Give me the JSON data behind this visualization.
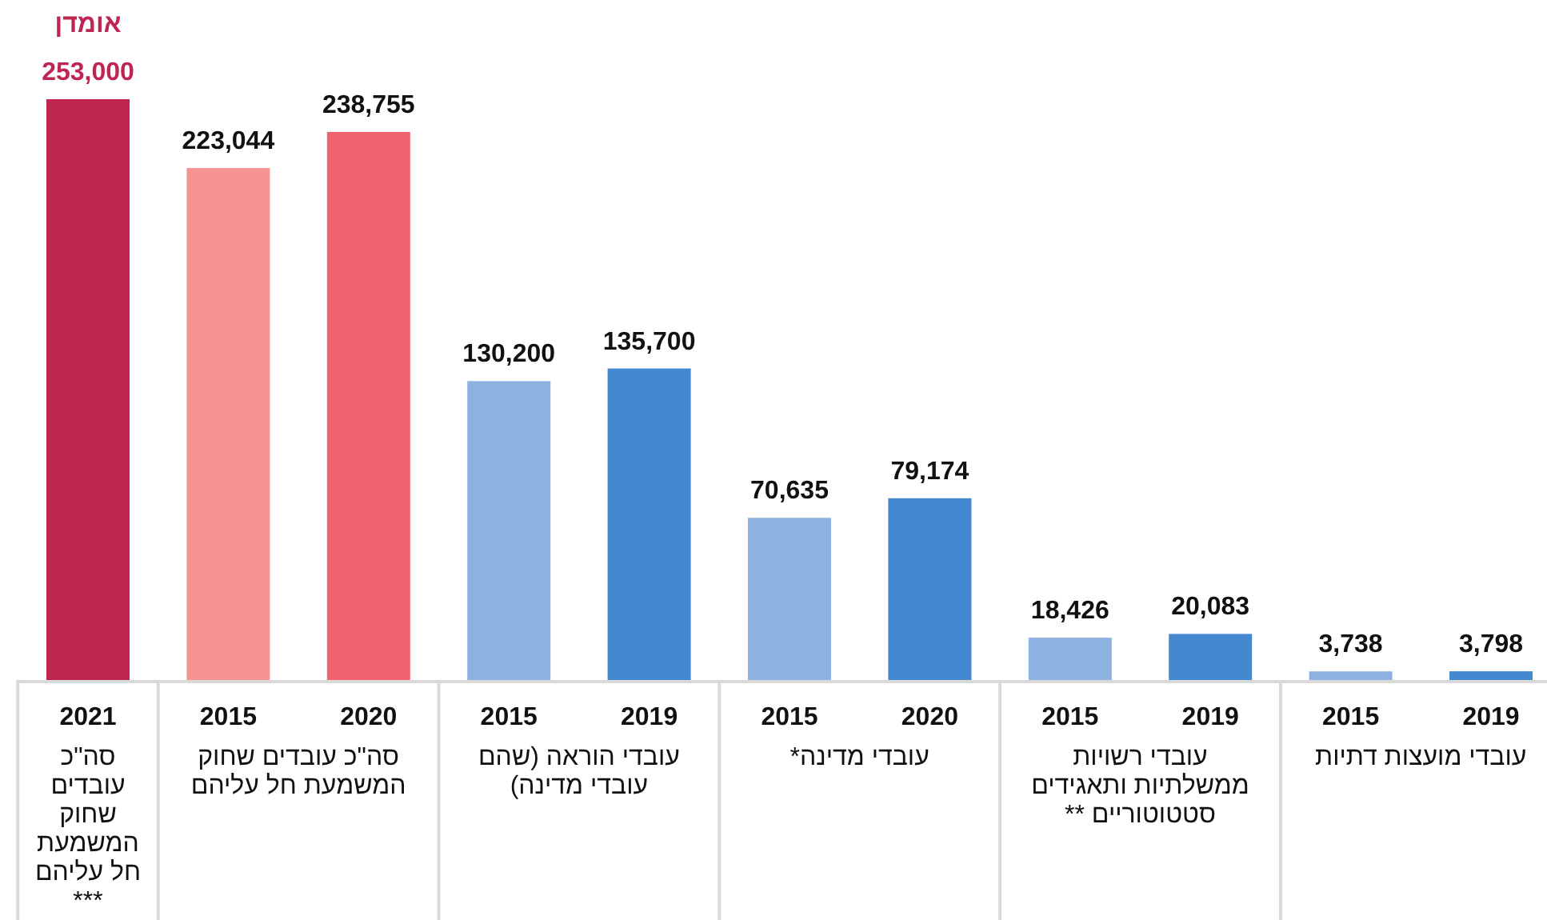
{
  "chart_data": {
    "type": "bar",
    "categories": [
      "2021",
      "2015",
      "2020",
      "2015",
      "2019",
      "2015",
      "2020",
      "2015",
      "2019",
      "2015",
      "2019"
    ],
    "values": [
      253000,
      223044,
      238755,
      130200,
      135700,
      70635,
      79174,
      18426,
      20083,
      3738,
      3798
    ],
    "value_labels": [
      "253,000",
      "223,044",
      "238,755",
      "130,200",
      "135,700",
      "70,635",
      "79,174",
      "18,426",
      "20,083",
      "3,738",
      "3,798"
    ],
    "colors": [
      "#be2550",
      "#f79292",
      "#f2616f",
      "#8db1e0",
      "#4488d0",
      "#8db1e0",
      "#4488d0",
      "#8db1e0",
      "#4488d0",
      "#8db1e0",
      "#4488d0"
    ],
    "annotations": [
      "אומדן",
      "סה\"כ עובדים שחוק המשמעת חל עליהם ***",
      "סה\"כ עובדים שחוק המשמעת חל עליהם",
      "עובדי הוראה (שהם עובדי מדינה)",
      "עובדי מדינה*",
      "עובדי רשויות ממשלתיות ותאגידים סטטוטוריים **",
      "עובדי מועצות דתיות"
    ]
  }
}
